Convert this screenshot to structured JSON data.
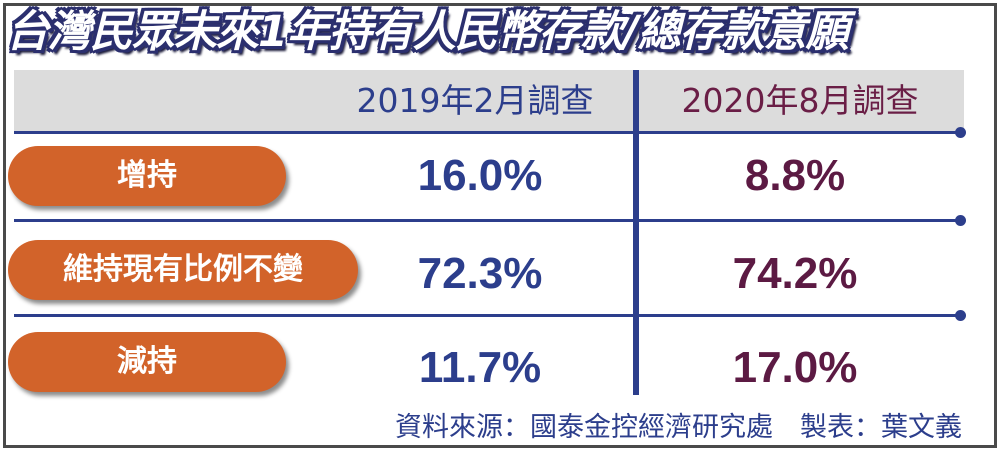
{
  "title": "台灣民眾未來1年持有人民幣存款/總存款意願",
  "chart_data": {
    "type": "table",
    "columns": [
      "2019年2月調查",
      "2020年8月調查"
    ],
    "rows": [
      {
        "label": "增持",
        "values": [
          "16.0%",
          "8.8%"
        ]
      },
      {
        "label": "維持現有比例不變",
        "values": [
          "72.3%",
          "74.2%"
        ]
      },
      {
        "label": "減持",
        "values": [
          "11.7%",
          "17.0%"
        ]
      }
    ]
  },
  "source": "資料來源：國泰金控經濟研究處　製表：葉文義",
  "colors": {
    "title_outline": "#2b2f6e",
    "header_band": "#dcdcdc",
    "pill": "#d2632a",
    "col1_text": "#2c3e8c",
    "col2_text": "#6a1e46",
    "rule": "#2c3e8c"
  }
}
